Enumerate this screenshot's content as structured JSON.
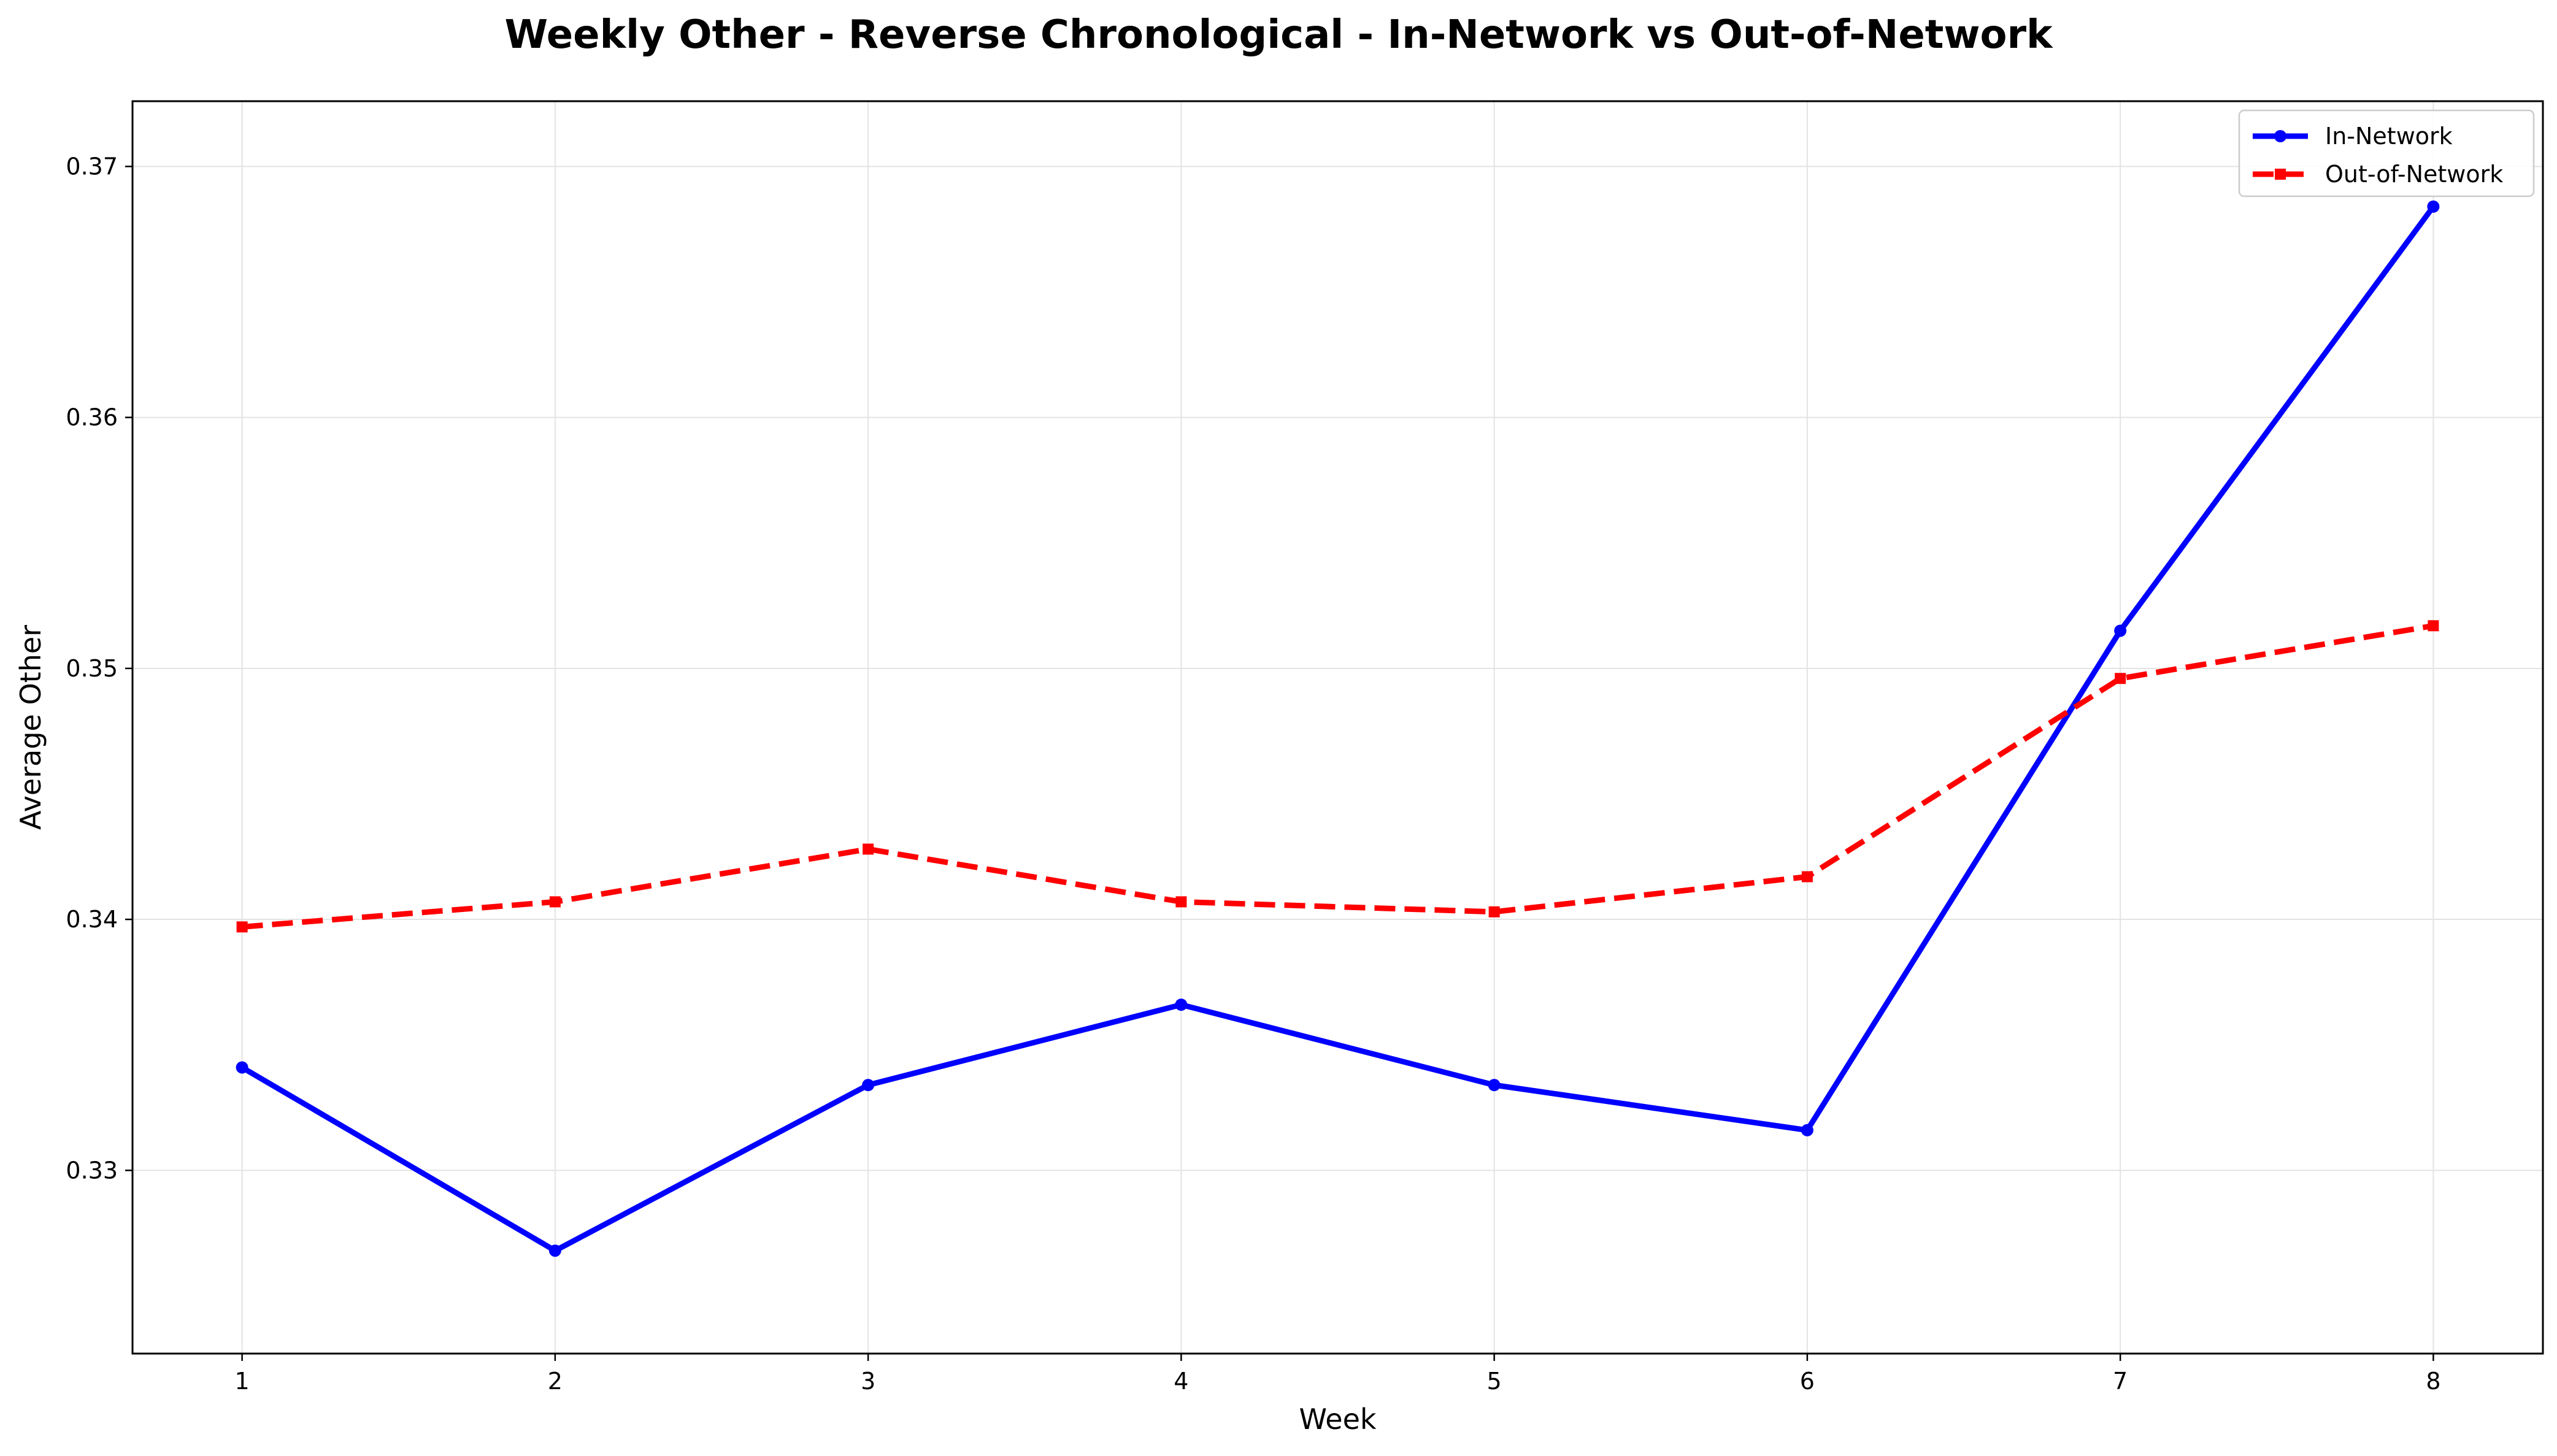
{
  "chart_data": {
    "type": "line",
    "title": "Weekly Other - Reverse Chronological - In-Network vs Out-of-Network",
    "xlabel": "Week",
    "ylabel": "Average Other",
    "x": [
      1,
      2,
      3,
      4,
      5,
      6,
      7,
      8
    ],
    "x_ticks": [
      "1",
      "2",
      "3",
      "4",
      "5",
      "6",
      "7",
      "8"
    ],
    "y_ticks": [
      "0.33",
      "0.34",
      "0.35",
      "0.36",
      "0.37"
    ],
    "xlim": [
      0.65,
      8.35
    ],
    "ylim": [
      0.3227,
      0.3726
    ],
    "grid": true,
    "legend_position": "top-right",
    "series": [
      {
        "name": "In-Network",
        "color": "#0000ff",
        "line_style": "solid",
        "marker": "circle",
        "values": [
          0.3341,
          0.3268,
          0.3334,
          0.3366,
          0.3334,
          0.3316,
          0.3515,
          0.3684
        ]
      },
      {
        "name": "Out-of-Network",
        "color": "#ff0000",
        "line_style": "dashed",
        "marker": "square",
        "values": [
          0.3397,
          0.3407,
          0.3428,
          0.3407,
          0.3403,
          0.3417,
          0.3496,
          0.3517
        ]
      }
    ]
  }
}
